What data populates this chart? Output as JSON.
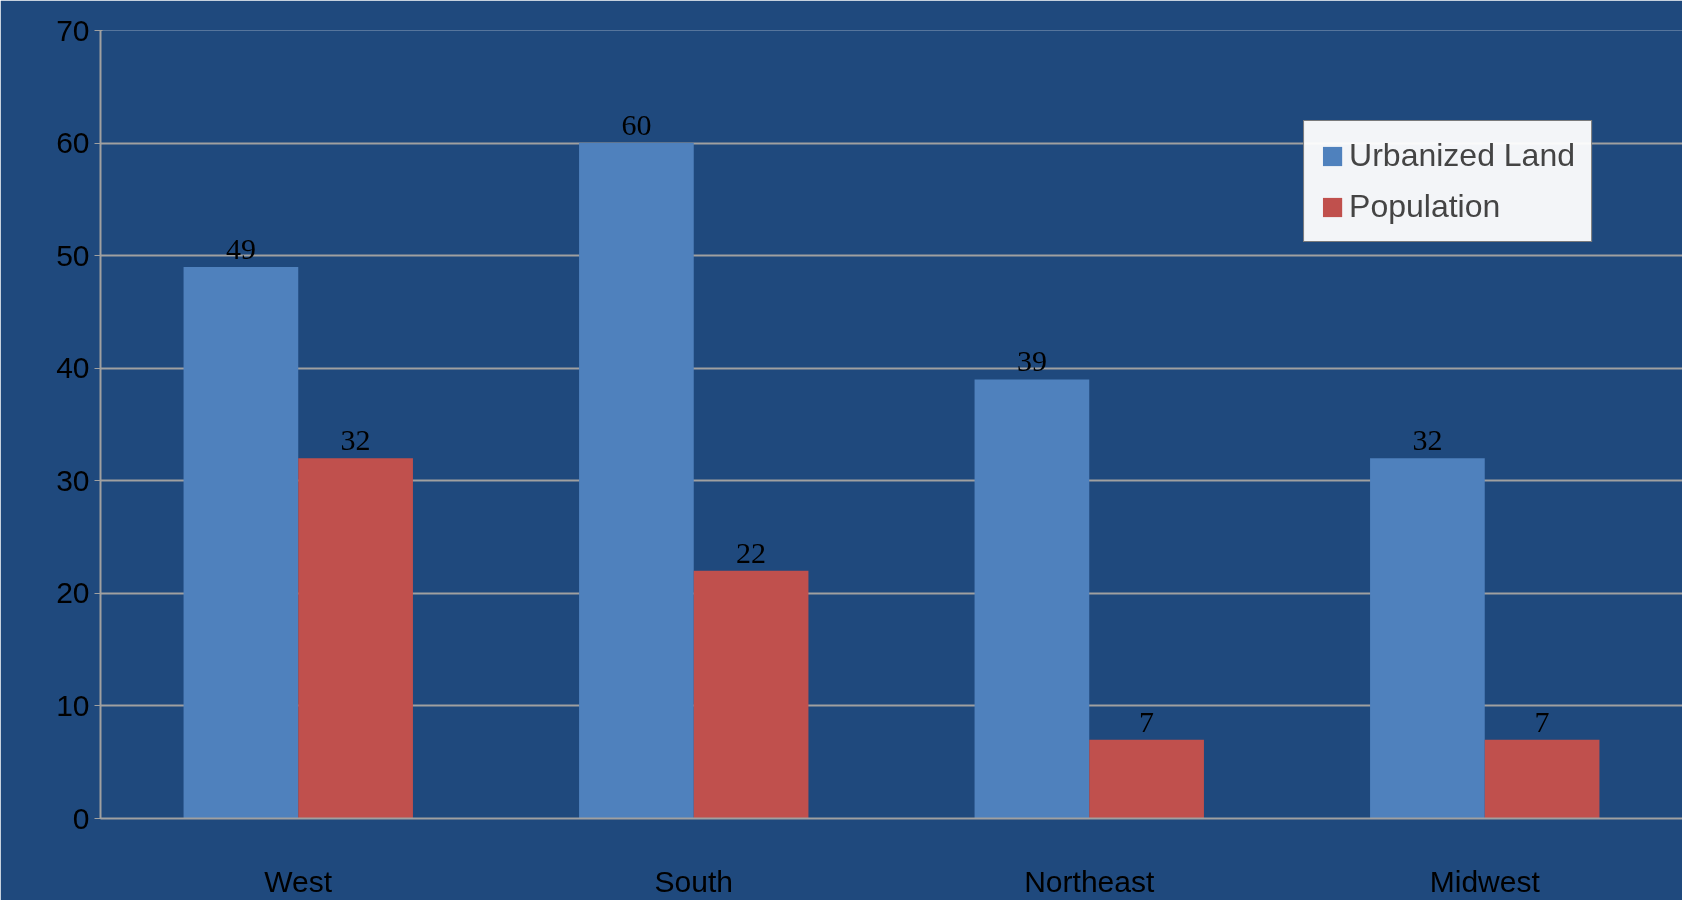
{
  "chart_data": {
    "type": "bar",
    "categories": [
      "West",
      "South",
      "Northeast",
      "Midwest"
    ],
    "series": [
      {
        "name": "Urbanized Land",
        "color": "#4f81bd",
        "values": [
          49,
          60,
          39,
          32
        ]
      },
      {
        "name": "Population",
        "color": "#c0504d",
        "values": [
          32,
          22,
          7,
          7
        ]
      }
    ],
    "ylim": [
      0,
      70
    ],
    "yticks": [
      0,
      10,
      20,
      30,
      40,
      50,
      60,
      70
    ],
    "grid": "y",
    "legend": "top right",
    "data_labels": true
  }
}
